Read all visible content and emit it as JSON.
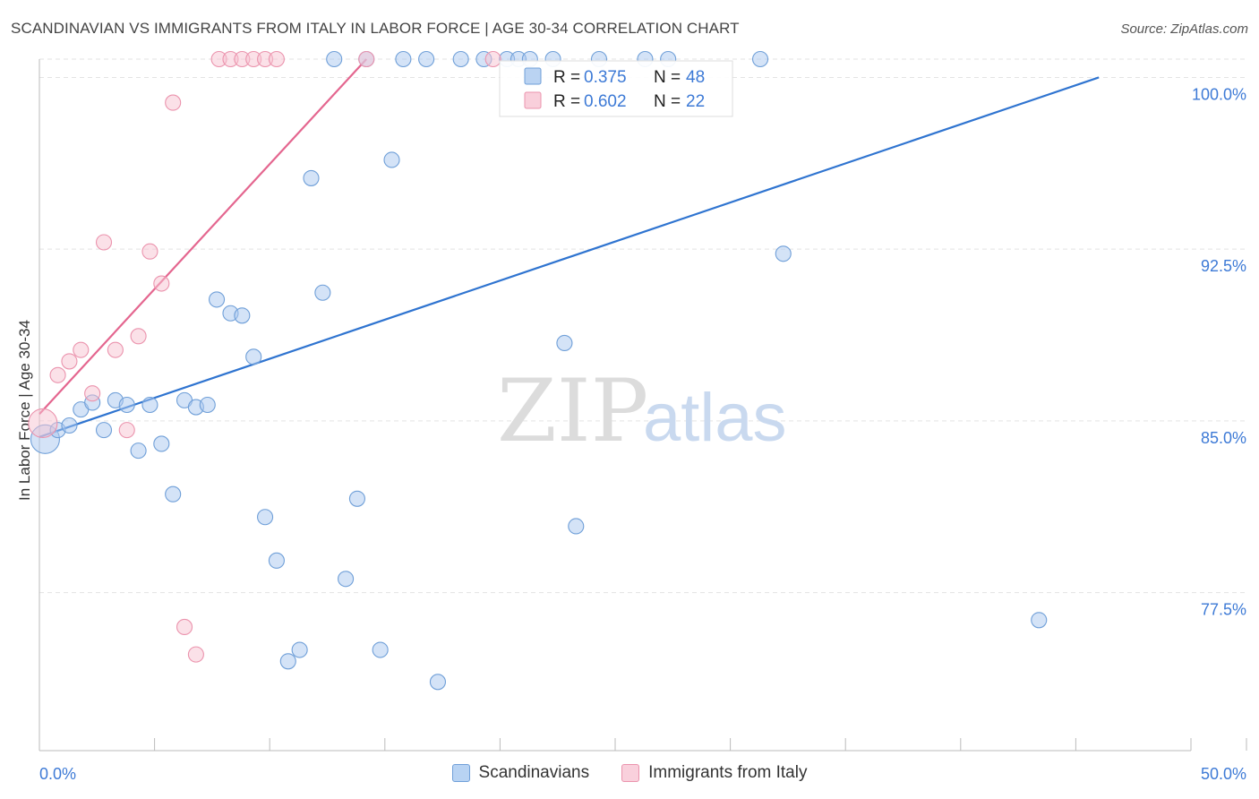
{
  "title": "SCANDINAVIAN VS IMMIGRANTS FROM ITALY IN LABOR FORCE | AGE 30-34 CORRELATION CHART",
  "source": "Source: ZipAtlas.com",
  "watermark": {
    "zip": "ZIP",
    "atlas": "atlas"
  },
  "colors": {
    "blue_fill": "#a9c8ef",
    "blue_stroke": "#6f9fd8",
    "blue_line": "#2f74d0",
    "pink_fill": "#f7c3d2",
    "pink_stroke": "#eb93ad",
    "pink_line": "#e4668f",
    "grid": "#e3e3e3",
    "axis_text": "#3d7ad6"
  },
  "legend": {
    "r_label": "R =",
    "n_label": "N =",
    "rows": [
      {
        "series": "Scandinavians",
        "r": "0.375",
        "n": "48",
        "color": "blue"
      },
      {
        "series": "Immigrants from Italy",
        "r": "0.602",
        "n": "22",
        "color": "pink"
      }
    ]
  },
  "bottom_legend": [
    {
      "label": "Scandinavians",
      "color": "blue"
    },
    {
      "label": "Immigrants from Italy",
      "color": "pink"
    }
  ],
  "chart_data": {
    "type": "scatter",
    "title": "SCANDINAVIAN VS IMMIGRANTS FROM ITALY IN LABOR FORCE | AGE 30-34 CORRELATION CHART",
    "xlabel": "",
    "ylabel": "In Labor Force | Age 30-34",
    "xlim": [
      0,
      50
    ],
    "ylim": [
      70.6,
      100.8
    ],
    "x_tick_labels": [
      "0.0%",
      "50.0%"
    ],
    "y_ticks": [
      100.0,
      92.5,
      85.0,
      77.5
    ],
    "y_tick_labels": [
      "100.0%",
      "92.5%",
      "85.0%",
      "77.5%"
    ],
    "grid": true,
    "series": [
      {
        "name": "Scandinavians",
        "color": "blue",
        "trend": {
          "x": [
            0.0,
            46.0
          ],
          "y": [
            84.3,
            100.0
          ]
        },
        "points": [
          {
            "x": 0.25,
            "y": 84.2,
            "big": true
          },
          {
            "x": 0.8,
            "y": 84.6
          },
          {
            "x": 1.3,
            "y": 84.8
          },
          {
            "x": 1.8,
            "y": 85.5
          },
          {
            "x": 2.3,
            "y": 85.8
          },
          {
            "x": 2.8,
            "y": 84.6
          },
          {
            "x": 3.3,
            "y": 85.9
          },
          {
            "x": 3.8,
            "y": 85.7
          },
          {
            "x": 4.3,
            "y": 83.7
          },
          {
            "x": 4.8,
            "y": 85.7
          },
          {
            "x": 5.3,
            "y": 84.0
          },
          {
            "x": 5.8,
            "y": 81.8
          },
          {
            "x": 6.3,
            "y": 85.9
          },
          {
            "x": 6.8,
            "y": 85.6
          },
          {
            "x": 7.3,
            "y": 85.7
          },
          {
            "x": 7.7,
            "y": 90.3
          },
          {
            "x": 8.3,
            "y": 89.7
          },
          {
            "x": 8.8,
            "y": 89.6
          },
          {
            "x": 9.3,
            "y": 87.8
          },
          {
            "x": 9.8,
            "y": 80.8
          },
          {
            "x": 10.3,
            "y": 78.9
          },
          {
            "x": 10.8,
            "y": 74.5
          },
          {
            "x": 11.3,
            "y": 75.0
          },
          {
            "x": 11.8,
            "y": 95.6
          },
          {
            "x": 12.3,
            "y": 90.6
          },
          {
            "x": 12.8,
            "y": 100.8
          },
          {
            "x": 13.3,
            "y": 78.1
          },
          {
            "x": 13.8,
            "y": 81.6
          },
          {
            "x": 14.2,
            "y": 100.8
          },
          {
            "x": 14.8,
            "y": 75.0
          },
          {
            "x": 15.3,
            "y": 96.4
          },
          {
            "x": 15.8,
            "y": 100.8
          },
          {
            "x": 16.8,
            "y": 100.8
          },
          {
            "x": 17.3,
            "y": 73.6
          },
          {
            "x": 18.3,
            "y": 100.8
          },
          {
            "x": 19.3,
            "y": 100.8
          },
          {
            "x": 20.3,
            "y": 100.8
          },
          {
            "x": 20.8,
            "y": 100.8
          },
          {
            "x": 21.3,
            "y": 100.8
          },
          {
            "x": 22.3,
            "y": 100.8
          },
          {
            "x": 22.8,
            "y": 88.4
          },
          {
            "x": 23.3,
            "y": 80.4
          },
          {
            "x": 24.3,
            "y": 100.8
          },
          {
            "x": 26.3,
            "y": 100.8
          },
          {
            "x": 27.3,
            "y": 100.8
          },
          {
            "x": 31.3,
            "y": 100.8
          },
          {
            "x": 32.3,
            "y": 92.3
          },
          {
            "x": 43.4,
            "y": 76.3
          }
        ]
      },
      {
        "name": "Immigrants from Italy",
        "color": "pink",
        "trend": {
          "x": [
            0.0,
            14.2
          ],
          "y": [
            85.3,
            100.8
          ]
        },
        "points": [
          {
            "x": 0.15,
            "y": 84.9,
            "big": true
          },
          {
            "x": 0.8,
            "y": 87.0
          },
          {
            "x": 1.3,
            "y": 87.6
          },
          {
            "x": 1.8,
            "y": 88.1
          },
          {
            "x": 2.3,
            "y": 86.2
          },
          {
            "x": 2.8,
            "y": 92.8
          },
          {
            "x": 3.3,
            "y": 88.1
          },
          {
            "x": 3.8,
            "y": 84.6
          },
          {
            "x": 4.3,
            "y": 88.7
          },
          {
            "x": 4.8,
            "y": 92.4
          },
          {
            "x": 5.3,
            "y": 91.0
          },
          {
            "x": 5.8,
            "y": 98.9
          },
          {
            "x": 6.3,
            "y": 76.0
          },
          {
            "x": 6.8,
            "y": 74.8
          },
          {
            "x": 7.8,
            "y": 100.8
          },
          {
            "x": 8.3,
            "y": 100.8
          },
          {
            "x": 8.8,
            "y": 100.8
          },
          {
            "x": 9.3,
            "y": 100.8
          },
          {
            "x": 9.8,
            "y": 100.8
          },
          {
            "x": 10.3,
            "y": 100.8
          },
          {
            "x": 14.2,
            "y": 100.8
          },
          {
            "x": 19.7,
            "y": 100.8
          }
        ]
      }
    ]
  }
}
